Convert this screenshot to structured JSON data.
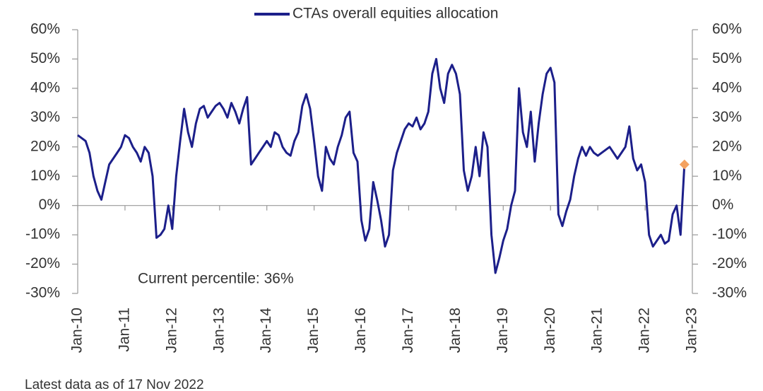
{
  "chart_data": {
    "type": "line",
    "x": [
      "Jan-10",
      "Feb-10",
      "Mar-10",
      "Apr-10",
      "May-10",
      "Jun-10",
      "Jul-10",
      "Aug-10",
      "Sep-10",
      "Oct-10",
      "Nov-10",
      "Dec-10",
      "Jan-11",
      "Feb-11",
      "Mar-11",
      "Apr-11",
      "May-11",
      "Jun-11",
      "Jul-11",
      "Aug-11",
      "Sep-11",
      "Oct-11",
      "Nov-11",
      "Dec-11",
      "Jan-12",
      "Feb-12",
      "Mar-12",
      "Apr-12",
      "May-12",
      "Jun-12",
      "Jul-12",
      "Aug-12",
      "Sep-12",
      "Oct-12",
      "Nov-12",
      "Dec-12",
      "Jan-13",
      "Feb-13",
      "Mar-13",
      "Apr-13",
      "May-13",
      "Jun-13",
      "Jul-13",
      "Aug-13",
      "Sep-13",
      "Oct-13",
      "Nov-13",
      "Dec-13",
      "Jan-14",
      "Feb-14",
      "Mar-14",
      "Apr-14",
      "May-14",
      "Jun-14",
      "Jul-14",
      "Aug-14",
      "Sep-14",
      "Oct-14",
      "Nov-14",
      "Dec-14",
      "Jan-15",
      "Feb-15",
      "Mar-15",
      "Apr-15",
      "May-15",
      "Jun-15",
      "Jul-15",
      "Aug-15",
      "Sep-15",
      "Oct-15",
      "Nov-15",
      "Dec-15",
      "Jan-16",
      "Feb-16",
      "Mar-16",
      "Apr-16",
      "May-16",
      "Jun-16",
      "Jul-16",
      "Aug-16",
      "Sep-16",
      "Oct-16",
      "Nov-16",
      "Dec-16",
      "Jan-17",
      "Feb-17",
      "Mar-17",
      "Apr-17",
      "May-17",
      "Jun-17",
      "Jul-17",
      "Aug-17",
      "Sep-17",
      "Oct-17",
      "Nov-17",
      "Dec-17",
      "Jan-18",
      "Feb-18",
      "Mar-18",
      "Apr-18",
      "May-18",
      "Jun-18",
      "Jul-18",
      "Aug-18",
      "Sep-18",
      "Oct-18",
      "Nov-18",
      "Dec-18",
      "Jan-19",
      "Feb-19",
      "Mar-19",
      "Apr-19",
      "May-19",
      "Jun-19",
      "Jul-19",
      "Aug-19",
      "Sep-19",
      "Oct-19",
      "Nov-19",
      "Dec-19",
      "Jan-20",
      "Feb-20",
      "Mar-20",
      "Apr-20",
      "May-20",
      "Jun-20",
      "Jul-20",
      "Aug-20",
      "Sep-20",
      "Oct-20",
      "Nov-20",
      "Dec-20",
      "Jan-21",
      "Feb-21",
      "Mar-21",
      "Apr-21",
      "May-21",
      "Jun-21",
      "Jul-21",
      "Aug-21",
      "Sep-21",
      "Oct-21",
      "Nov-21",
      "Dec-21",
      "Jan-22",
      "Feb-22",
      "Mar-22",
      "Apr-22",
      "May-22",
      "Jun-22",
      "Jul-22",
      "Aug-22",
      "Sep-22",
      "Oct-22",
      "Nov-22"
    ],
    "series": [
      {
        "name": "CTAs overall equities allocation",
        "color": "#1c1f8a",
        "values": [
          24,
          23,
          22,
          18,
          10,
          5,
          2,
          8,
          14,
          16,
          18,
          20,
          24,
          23,
          20,
          18,
          15,
          20,
          18,
          10,
          -11,
          -10,
          -8,
          0,
          -8,
          10,
          22,
          33,
          25,
          20,
          28,
          33,
          34,
          30,
          32,
          34,
          35,
          33,
          30,
          35,
          32,
          28,
          33,
          37,
          14,
          16,
          18,
          20,
          22,
          20,
          25,
          24,
          20,
          18,
          17,
          22,
          25,
          34,
          38,
          33,
          22,
          10,
          5,
          20,
          16,
          14,
          20,
          24,
          30,
          32,
          18,
          15,
          -5,
          -12,
          -8,
          8,
          2,
          -5,
          -14,
          -10,
          12,
          18,
          22,
          26,
          28,
          27,
          30,
          26,
          28,
          32,
          45,
          50,
          40,
          35,
          45,
          48,
          45,
          38,
          12,
          5,
          10,
          20,
          10,
          25,
          20,
          -10,
          -23,
          -18,
          -12,
          -8,
          0,
          5,
          40,
          25,
          20,
          32,
          15,
          28,
          38,
          45,
          47,
          42,
          -3,
          -7,
          -2,
          2,
          10,
          16,
          20,
          17,
          20,
          18,
          17,
          18,
          19,
          20,
          18,
          16,
          18,
          20,
          27,
          16,
          12,
          14,
          8,
          -10,
          -14,
          -12,
          -10,
          -13,
          -12,
          -3,
          0,
          -10,
          14
        ]
      }
    ],
    "latest_marker_color": "#f4a261",
    "annotation": "Current percentile: 36%",
    "footnote": "Latest data as of 17 Nov 2022",
    "xticks": [
      "Jan-10",
      "Jan-11",
      "Jan-12",
      "Jan-13",
      "Jan-14",
      "Jan-15",
      "Jan-16",
      "Jan-17",
      "Jan-18",
      "Jan-19",
      "Jan-20",
      "Jan-21",
      "Jan-22",
      "Jan-23"
    ],
    "ylim": [
      -30,
      60
    ],
    "yticks": [
      {
        "value": 60,
        "label": "60%"
      },
      {
        "value": 50,
        "label": "50%"
      },
      {
        "value": 40,
        "label": "40%"
      },
      {
        "value": 30,
        "label": "30%"
      },
      {
        "value": 20,
        "label": "20%"
      },
      {
        "value": 10,
        "label": "10%"
      },
      {
        "value": 0,
        "label": "0%"
      },
      {
        "value": -10,
        "label": "-10%"
      },
      {
        "value": -20,
        "label": "-20%"
      },
      {
        "value": -30,
        "label": "-30%"
      }
    ],
    "y2lim": [
      -30,
      60
    ],
    "y2ticks": [
      {
        "value": 60,
        "label": "60%"
      },
      {
        "value": 50,
        "label": "50%"
      },
      {
        "value": 40,
        "label": "40%"
      },
      {
        "value": 30,
        "label": "30%"
      },
      {
        "value": 20,
        "label": "20%"
      },
      {
        "value": 10,
        "label": "10%"
      },
      {
        "value": 0,
        "label": "0%"
      },
      {
        "value": -10,
        "label": "-10%"
      },
      {
        "value": -20,
        "label": "-20%"
      },
      {
        "value": -30,
        "label": "-30%"
      }
    ],
    "legend": "top"
  }
}
